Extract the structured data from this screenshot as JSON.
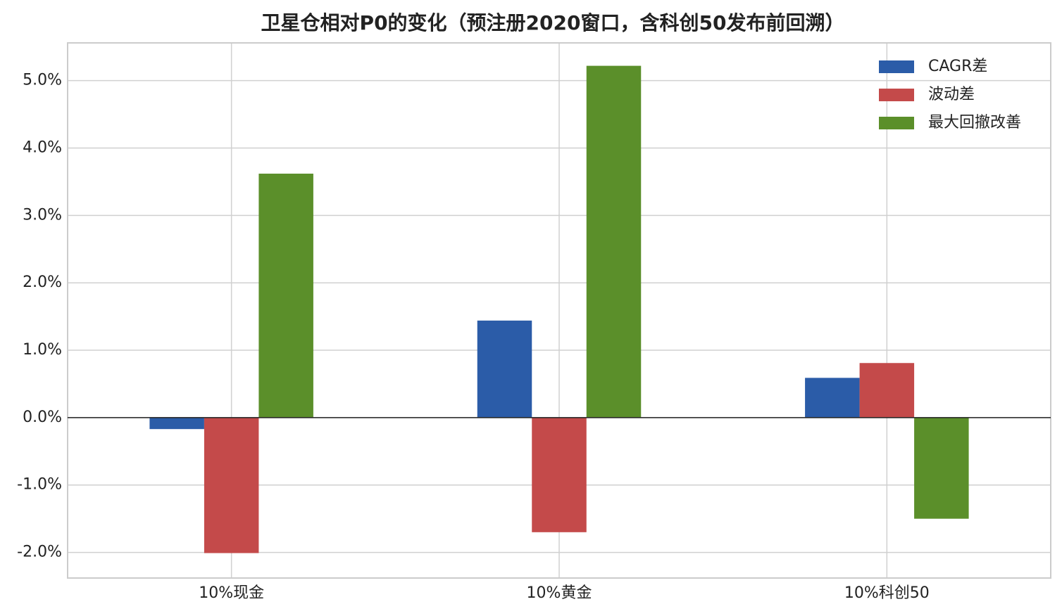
{
  "chart_data": {
    "type": "bar",
    "title": "卫星仓相对P0的变化（预注册2020窗口，含科创50发布前回溯）",
    "categories": [
      "10%现金",
      "10%黄金",
      "10%科创50"
    ],
    "series": [
      {
        "name": "CAGR差",
        "color": "#2b5ca8",
        "values": [
          -0.17,
          1.44,
          0.59
        ]
      },
      {
        "name": "波动差",
        "color": "#c44a4a",
        "values": [
          -2.01,
          -1.7,
          0.81
        ]
      },
      {
        "name": "最大回撤改善",
        "color": "#5b8f2a",
        "values": [
          3.62,
          5.22,
          -1.5
        ]
      }
    ],
    "ylim": [
      -2.38,
      5.56
    ],
    "yticks": [
      {
        "value": -2,
        "label": "-2.0%"
      },
      {
        "value": -1,
        "label": "-1.0%"
      },
      {
        "value": 0,
        "label": "0.0%"
      },
      {
        "value": 1,
        "label": "1.0%"
      },
      {
        "value": 2,
        "label": "2.0%"
      },
      {
        "value": 3,
        "label": "3.0%"
      },
      {
        "value": 4,
        "label": "4.0%"
      },
      {
        "value": 5,
        "label": "5.0%"
      }
    ],
    "grid": true,
    "legend": "upper right"
  }
}
